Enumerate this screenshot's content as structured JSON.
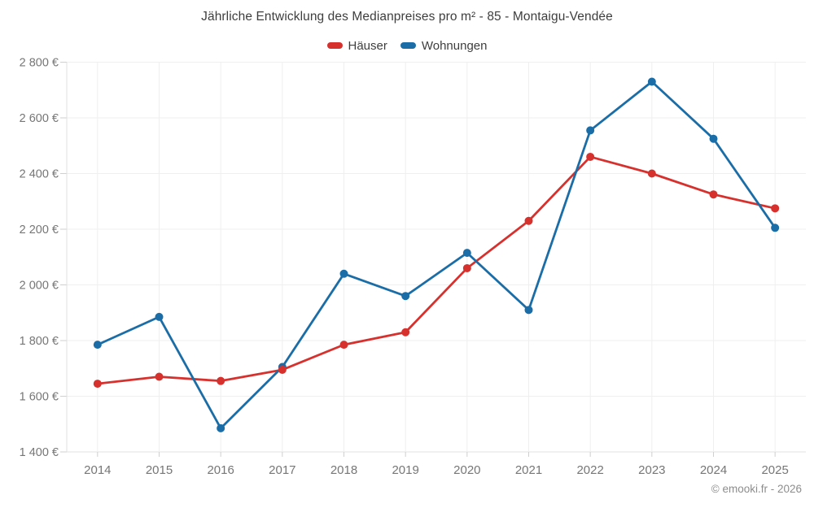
{
  "title": "Jährliche Entwicklung des Medianpreises pro m² - 85 - Montaigu-Vendée",
  "legend": [
    {
      "label": "Häuser",
      "color": "#d7312e",
      "swatch_icon": "legend-swatch-red"
    },
    {
      "label": "Wohnungen",
      "color": "#1a6da6",
      "swatch_icon": "legend-swatch-blue"
    }
  ],
  "footer": "© emooki.fr - 2026",
  "chart_data": {
    "type": "line",
    "title": "Jährliche Entwicklung des Medianpreises pro m² - 85 - Montaigu-Vendée",
    "xlabel": "",
    "ylabel": "",
    "categories": [
      "2014",
      "2015",
      "2016",
      "2017",
      "2018",
      "2019",
      "2020",
      "2021",
      "2022",
      "2023",
      "2024",
      "2025"
    ],
    "series": [
      {
        "name": "Häuser",
        "color": "#d7312e",
        "values": [
          1645,
          1670,
          1655,
          1695,
          1785,
          1830,
          2060,
          2230,
          2460,
          2400,
          2325,
          2275
        ]
      },
      {
        "name": "Wohnungen",
        "color": "#1a6da6",
        "values": [
          1785,
          1885,
          1485,
          1705,
          2040,
          1960,
          2115,
          1910,
          2555,
          2730,
          2525,
          2205
        ]
      }
    ],
    "ylim": [
      1400,
      2800
    ],
    "yticks": [
      1400,
      1600,
      1800,
      2000,
      2200,
      2400,
      2600,
      2800
    ],
    "ytick_labels": [
      "1 400 €",
      "1 600 €",
      "1 800 €",
      "2 000 €",
      "2 200 €",
      "2 400 €",
      "2 600 €",
      "2 800 €"
    ],
    "grid": true,
    "legend_position": "top",
    "value_suffix": " €"
  }
}
